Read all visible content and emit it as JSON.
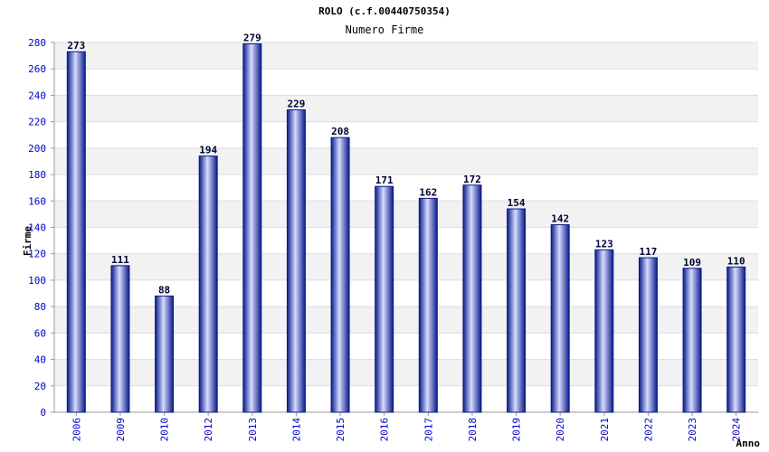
{
  "title": "ROLO (c.f.00440750354)",
  "subtitle": "Numero Firme",
  "colors": {
    "bar_edge": "#0a1a8a",
    "bar_mid": "#d6dcff",
    "tick_text": "#0000cc",
    "value_text": "#000033",
    "band": "#f2f2f2",
    "grid": "#dcdcdc"
  },
  "chart_data": {
    "type": "bar",
    "title": "ROLO (c.f.00440750354)",
    "subtitle": "Numero Firme",
    "xlabel": "Anno",
    "ylabel": "Firme",
    "categories": [
      "2006",
      "2009",
      "2010",
      "2012",
      "2013",
      "2014",
      "2015",
      "2016",
      "2017",
      "2018",
      "2019",
      "2020",
      "2021",
      "2022",
      "2023",
      "2024"
    ],
    "values": [
      273,
      111,
      88,
      194,
      279,
      229,
      208,
      171,
      162,
      172,
      154,
      142,
      123,
      117,
      109,
      110
    ],
    "ylim": [
      0,
      280
    ],
    "yticks": [
      0,
      20,
      40,
      60,
      80,
      100,
      120,
      140,
      160,
      180,
      200,
      220,
      240,
      260,
      280
    ],
    "grid": true,
    "legend": "none"
  }
}
